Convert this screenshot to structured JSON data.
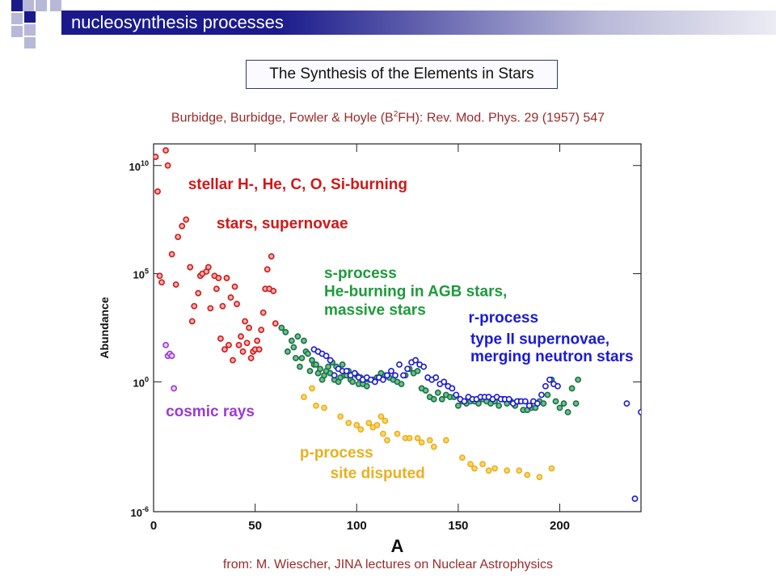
{
  "slide": {
    "title": "nucleosynthesis processes",
    "box_title": "The Synthesis of the Elements in Stars",
    "citation_prefix": "Burbidge, Burbidge, Fowler & Hoyle (B",
    "citation_sup": "2",
    "citation_suffix": "FH): Rev. Mod. Phys. 29 (1957) 547",
    "source": "from: M. Wiescher, JINA lectures on Nuclear Astrophysics",
    "colors": {
      "title_bar": "#1a1a8c",
      "text_accent": "#9b2a2a",
      "box_border": "#2a3c66"
    }
  },
  "chart_data": {
    "type": "scatter",
    "xlabel": "A",
    "ylabel": "Abundance",
    "xlim": [
      0,
      240
    ],
    "ylim": [
      -6,
      11
    ],
    "yscale": "log",
    "x_ticks": [
      0,
      50,
      100,
      150,
      200
    ],
    "y_ticks": [
      {
        "v": 10,
        "base": "10",
        "exp": "10"
      },
      {
        "v": 5,
        "base": "10",
        "exp": "5"
      },
      {
        "v": 0,
        "base": "10",
        "exp": "0"
      },
      {
        "v": -6,
        "base": "10",
        "exp": "-6"
      }
    ],
    "annotations": [
      {
        "key": "stellar1",
        "text": "stellar H-, He, C, O, Si-burning",
        "x": 17,
        "y": 8.9,
        "color": "#d01818"
      },
      {
        "key": "stellar2",
        "text": "stars, supernovae",
        "x": 31,
        "y": 7.1,
        "color": "#d01818"
      },
      {
        "key": "s1",
        "text": "s-process",
        "x": 84,
        "y": 4.8,
        "color": "#1e9a3c"
      },
      {
        "key": "s2",
        "text": "He-burning in AGB stars,",
        "x": 84,
        "y": 3.95,
        "color": "#1e9a3c"
      },
      {
        "key": "s3",
        "text": "massive stars",
        "x": 84,
        "y": 3.1,
        "color": "#1e9a3c"
      },
      {
        "key": "r1",
        "text": "r-process",
        "x": 155,
        "y": 2.75,
        "color": "#1a1ad8"
      },
      {
        "key": "r2",
        "text": "type II supernovae,",
        "x": 156,
        "y": 1.75,
        "color": "#1a1ad8"
      },
      {
        "key": "r3",
        "text": "merging neutron stars",
        "x": 156,
        "y": 0.95,
        "color": "#1a1ad8"
      },
      {
        "key": "cr",
        "text": "cosmic rays",
        "x": 6,
        "y": -1.6,
        "color": "#9a3ad0"
      },
      {
        "key": "p1",
        "text": "p-process",
        "x": 72,
        "y": -3.5,
        "color": "#e8b020"
      },
      {
        "key": "p2",
        "text": "site disputed",
        "x": 87,
        "y": -4.45,
        "color": "#e8b020"
      }
    ],
    "series": [
      {
        "name": "stellar H-, He, C, O, Si-burning",
        "color": "#d01818",
        "fill": "#f0b0b0",
        "x": [
          1,
          2,
          3,
          4,
          6,
          7,
          9,
          11,
          12,
          14,
          16,
          18,
          19,
          20,
          22,
          23,
          24,
          26,
          27,
          28,
          30,
          31,
          32,
          33,
          34,
          35,
          36,
          37,
          38,
          39,
          40,
          41,
          42,
          43,
          44,
          45,
          46,
          47,
          48,
          49,
          50,
          51,
          52,
          53,
          54,
          55,
          56,
          57,
          58,
          59,
          60
        ],
        "y": [
          10.4,
          8.8,
          4.9,
          4.6,
          10.7,
          10.0,
          5.9,
          4.5,
          6.7,
          7.2,
          7.5,
          5.3,
          2.8,
          3.5,
          4.1,
          4.9,
          5.0,
          5.1,
          5.3,
          3.4,
          4.9,
          4.3,
          4.8,
          2.0,
          3.5,
          1.5,
          4.8,
          1.7,
          3.9,
          1.0,
          4.4,
          3.6,
          1.7,
          2.1,
          1.4,
          2.8,
          1.8,
          2.5,
          1.1,
          1.4,
          1.5,
          1.9,
          1.5,
          2.4,
          3.2,
          4.3,
          5.2,
          4.3,
          5.8,
          4.2,
          2.7
        ]
      },
      {
        "name": "s-process",
        "color": "#1e6e46",
        "fill": "#66c48a",
        "x": [
          63,
          65,
          66,
          68,
          69,
          70,
          71,
          72,
          73,
          74,
          75,
          76,
          77,
          78,
          79,
          80,
          81,
          82,
          83,
          84,
          85,
          86,
          87,
          88,
          89,
          90,
          91,
          92,
          93,
          94,
          95,
          96,
          97,
          98,
          99,
          100,
          101,
          102,
          103,
          104,
          105,
          106,
          108,
          110,
          112,
          114,
          116,
          118,
          120,
          122,
          124,
          126,
          128,
          130,
          132,
          134,
          136,
          138,
          140,
          142,
          144,
          146,
          148,
          150,
          152,
          154,
          156,
          158,
          160,
          162,
          164,
          166,
          168,
          170,
          172,
          174,
          176,
          178,
          180,
          182,
          184,
          186,
          188,
          190,
          192,
          194,
          196,
          198,
          200,
          202,
          204,
          206,
          208,
          209
        ],
        "y": [
          2.5,
          2.3,
          1.4,
          1.9,
          1.6,
          1.1,
          2.1,
          0.7,
          1.1,
          1.9,
          1.4,
          1.3,
          0.5,
          1.0,
          0.8,
          0.8,
          0.4,
          0.6,
          0.1,
          0.3,
          0.5,
          0.7,
          0.4,
          0.9,
          0.1,
          0.7,
          0.0,
          0.2,
          0.8,
          0.3,
          0.3,
          0.5,
          0.1,
          0.0,
          0.4,
          0.3,
          -0.1,
          0.2,
          -0.1,
          0.1,
          -0.2,
          0.1,
          0.1,
          0.2,
          0.4,
          0.3,
          0.2,
          0.1,
          0.0,
          -0.1,
          0.3,
          0.6,
          0.4,
          0.5,
          -0.3,
          -0.4,
          -0.7,
          -0.8,
          -0.5,
          -0.8,
          -0.6,
          -0.7,
          -0.7,
          -1.1,
          -0.9,
          -1.0,
          -0.9,
          -0.9,
          -1.0,
          -0.8,
          -0.9,
          -1.0,
          -0.9,
          -1.1,
          -0.8,
          -1.0,
          -0.9,
          -1.1,
          -0.9,
          -1.3,
          -1.3,
          -1.2,
          -1.2,
          -0.9,
          -1.0,
          -0.6,
          0.1,
          -0.9,
          -1.2,
          -1.0,
          -1.4,
          -0.3,
          -1.0,
          0.1
        ]
      },
      {
        "name": "r-process",
        "color": "#1a1ad8",
        "fill": "#ffffff",
        "x": [
          79,
          81,
          83,
          85,
          87,
          89,
          91,
          93,
          95,
          97,
          99,
          101,
          103,
          105,
          107,
          109,
          111,
          113,
          115,
          117,
          119,
          121,
          123,
          125,
          127,
          129,
          131,
          133,
          135,
          137,
          139,
          141,
          143,
          145,
          147,
          149,
          151,
          153,
          155,
          157,
          159,
          161,
          163,
          165,
          167,
          169,
          171,
          173,
          175,
          177,
          179,
          181,
          183,
          185,
          187,
          189,
          191,
          193,
          195,
          197,
          199,
          233,
          237,
          240
        ],
        "y": [
          1.5,
          1.4,
          1.3,
          1.2,
          1.0,
          0.3,
          0.6,
          0.5,
          0.5,
          0.3,
          0.4,
          0.2,
          0.1,
          0.2,
          0.1,
          0.0,
          0.2,
          0.1,
          0.3,
          0.5,
          0.3,
          0.8,
          0.3,
          0.6,
          0.9,
          1.0,
          0.8,
          0.7,
          0.2,
          0.1,
          0.2,
          -0.1,
          0.0,
          -0.2,
          -0.3,
          -0.6,
          -0.8,
          -0.9,
          -0.7,
          -0.8,
          -0.8,
          -0.7,
          -0.7,
          -0.7,
          -0.8,
          -0.7,
          -0.8,
          -0.8,
          -0.8,
          -1.0,
          -0.9,
          -0.9,
          -0.9,
          -1.1,
          -0.9,
          -1.0,
          -0.6,
          -0.2,
          0.1,
          -0.1,
          -0.2,
          -1.0,
          -5.4,
          -1.4
        ]
      },
      {
        "name": "cosmic rays",
        "color": "#9a3ad0",
        "fill": "#e8d0ff",
        "x": [
          6,
          7,
          8,
          9,
          10
        ],
        "y": [
          1.7,
          1.2,
          1.3,
          1.2,
          -0.3
        ]
      },
      {
        "name": "p-process",
        "color": "#e8b020",
        "fill": "#ffd66a",
        "x": [
          74,
          78,
          80,
          84,
          92,
          96,
          100,
          102,
          106,
          108,
          110,
          112,
          113,
          114,
          115,
          120,
          124,
          126,
          130,
          132,
          136,
          138,
          144,
          152,
          156,
          158,
          162,
          165,
          168,
          174,
          180,
          184,
          190,
          196
        ],
        "y": [
          -0.7,
          -0.3,
          -1.1,
          -1.2,
          -1.6,
          -1.9,
          -2.0,
          -2.2,
          -1.9,
          -2.1,
          -2.0,
          -1.6,
          -2.4,
          -1.8,
          -2.7,
          -2.4,
          -2.6,
          -2.6,
          -2.6,
          -2.8,
          -2.7,
          -3.0,
          -2.7,
          -3.5,
          -3.8,
          -4.0,
          -3.8,
          -4.1,
          -4.0,
          -4.1,
          -4.1,
          -4.3,
          -4.4,
          -4.0
        ]
      }
    ]
  }
}
